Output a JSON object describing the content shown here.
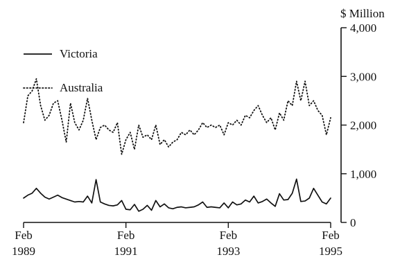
{
  "chart_data": {
    "type": "line",
    "title": "",
    "xlabel": "",
    "ylabel": "$ Million",
    "ylim": [
      0,
      4000
    ],
    "xlim": [
      "1989-02",
      "1995-02"
    ],
    "grid": false,
    "legend_position": "top-left",
    "y_axis_side": "right",
    "x_ticks": [
      {
        "date": "1989-02",
        "month": "Feb",
        "year": "1989"
      },
      {
        "date": "1991-02",
        "month": "Feb",
        "year": "1991"
      },
      {
        "date": "1993-02",
        "month": "Feb",
        "year": "1993"
      },
      {
        "date": "1995-02",
        "month": "Feb",
        "year": "1995"
      }
    ],
    "y_ticks": [
      "0",
      "1,000",
      "2,000",
      "3,000",
      "4,000"
    ],
    "y_tick_values": [
      0,
      1000,
      2000,
      3000,
      4000
    ],
    "series": [
      {
        "name": "Victoria",
        "style": "solid",
        "color": "#111111",
        "points": [
          [
            "1989-02",
            500
          ],
          [
            "1989-03",
            560
          ],
          [
            "1989-04",
            600
          ],
          [
            "1989-05",
            700
          ],
          [
            "1989-06",
            600
          ],
          [
            "1989-07",
            520
          ],
          [
            "1989-08",
            480
          ],
          [
            "1989-09",
            520
          ],
          [
            "1989-10",
            560
          ],
          [
            "1989-11",
            510
          ],
          [
            "1989-12",
            480
          ],
          [
            "1990-01",
            450
          ],
          [
            "1990-02",
            420
          ],
          [
            "1990-03",
            430
          ],
          [
            "1990-04",
            420
          ],
          [
            "1990-05",
            540
          ],
          [
            "1990-06",
            400
          ],
          [
            "1990-07",
            880
          ],
          [
            "1990-08",
            420
          ],
          [
            "1990-09",
            380
          ],
          [
            "1990-10",
            350
          ],
          [
            "1990-11",
            340
          ],
          [
            "1990-12",
            360
          ],
          [
            "1991-01",
            450
          ],
          [
            "1991-02",
            270
          ],
          [
            "1991-03",
            260
          ],
          [
            "1991-04",
            370
          ],
          [
            "1991-05",
            230
          ],
          [
            "1991-06",
            270
          ],
          [
            "1991-07",
            350
          ],
          [
            "1991-08",
            250
          ],
          [
            "1991-09",
            450
          ],
          [
            "1991-10",
            320
          ],
          [
            "1991-11",
            380
          ],
          [
            "1991-12",
            300
          ],
          [
            "1992-01",
            280
          ],
          [
            "1992-02",
            310
          ],
          [
            "1992-03",
            320
          ],
          [
            "1992-04",
            300
          ],
          [
            "1992-05",
            310
          ],
          [
            "1992-06",
            320
          ],
          [
            "1992-07",
            360
          ],
          [
            "1992-08",
            420
          ],
          [
            "1992-09",
            310
          ],
          [
            "1992-10",
            320
          ],
          [
            "1992-11",
            310
          ],
          [
            "1992-12",
            300
          ],
          [
            "1993-01",
            400
          ],
          [
            "1993-02",
            300
          ],
          [
            "1993-03",
            420
          ],
          [
            "1993-04",
            360
          ],
          [
            "1993-05",
            380
          ],
          [
            "1993-06",
            460
          ],
          [
            "1993-07",
            420
          ],
          [
            "1993-08",
            540
          ],
          [
            "1993-09",
            400
          ],
          [
            "1993-10",
            430
          ],
          [
            "1993-11",
            480
          ],
          [
            "1993-12",
            400
          ],
          [
            "1994-01",
            330
          ],
          [
            "1994-02",
            590
          ],
          [
            "1994-03",
            460
          ],
          [
            "1994-04",
            470
          ],
          [
            "1994-05",
            600
          ],
          [
            "1994-06",
            890
          ],
          [
            "1994-07",
            430
          ],
          [
            "1994-08",
            440
          ],
          [
            "1994-09",
            500
          ],
          [
            "1994-10",
            700
          ],
          [
            "1994-11",
            560
          ],
          [
            "1994-12",
            420
          ],
          [
            "1995-01",
            380
          ],
          [
            "1995-02",
            500
          ]
        ]
      },
      {
        "name": "Australia",
        "style": "dotted",
        "color": "#111111",
        "points": [
          [
            "1989-02",
            2050
          ],
          [
            "1989-03",
            2600
          ],
          [
            "1989-04",
            2700
          ],
          [
            "1989-05",
            2950
          ],
          [
            "1989-06",
            2400
          ],
          [
            "1989-07",
            2100
          ],
          [
            "1989-08",
            2200
          ],
          [
            "1989-09",
            2450
          ],
          [
            "1989-10",
            2500
          ],
          [
            "1989-11",
            2100
          ],
          [
            "1989-12",
            1650
          ],
          [
            "1990-01",
            2450
          ],
          [
            "1990-02",
            2050
          ],
          [
            "1990-03",
            1900
          ],
          [
            "1990-04",
            2100
          ],
          [
            "1990-05",
            2550
          ],
          [
            "1990-06",
            2100
          ],
          [
            "1990-07",
            1700
          ],
          [
            "1990-08",
            1950
          ],
          [
            "1990-09",
            2000
          ],
          [
            "1990-10",
            1900
          ],
          [
            "1990-11",
            1850
          ],
          [
            "1990-12",
            2050
          ],
          [
            "1991-01",
            1400
          ],
          [
            "1991-02",
            1700
          ],
          [
            "1991-03",
            1850
          ],
          [
            "1991-04",
            1500
          ],
          [
            "1991-05",
            2000
          ],
          [
            "1991-06",
            1750
          ],
          [
            "1991-07",
            1800
          ],
          [
            "1991-08",
            1700
          ],
          [
            "1991-09",
            2000
          ],
          [
            "1991-10",
            1600
          ],
          [
            "1991-11",
            1700
          ],
          [
            "1991-12",
            1550
          ],
          [
            "1992-01",
            1650
          ],
          [
            "1992-02",
            1700
          ],
          [
            "1992-03",
            1850
          ],
          [
            "1992-04",
            1800
          ],
          [
            "1992-05",
            1900
          ],
          [
            "1992-06",
            1800
          ],
          [
            "1992-07",
            1900
          ],
          [
            "1992-08",
            2050
          ],
          [
            "1992-09",
            1950
          ],
          [
            "1992-10",
            2000
          ],
          [
            "1992-11",
            1950
          ],
          [
            "1992-12",
            2000
          ],
          [
            "1993-01",
            1800
          ],
          [
            "1993-02",
            2050
          ],
          [
            "1993-03",
            2000
          ],
          [
            "1993-04",
            2100
          ],
          [
            "1993-05",
            2000
          ],
          [
            "1993-06",
            2200
          ],
          [
            "1993-07",
            2150
          ],
          [
            "1993-08",
            2300
          ],
          [
            "1993-09",
            2400
          ],
          [
            "1993-10",
            2200
          ],
          [
            "1993-11",
            2050
          ],
          [
            "1993-12",
            2150
          ],
          [
            "1994-01",
            1900
          ],
          [
            "1994-02",
            2250
          ],
          [
            "1994-03",
            2100
          ],
          [
            "1994-04",
            2500
          ],
          [
            "1994-05",
            2400
          ],
          [
            "1994-06",
            2900
          ],
          [
            "1994-07",
            2500
          ],
          [
            "1994-08",
            2900
          ],
          [
            "1994-09",
            2400
          ],
          [
            "1994-10",
            2500
          ],
          [
            "1994-11",
            2300
          ],
          [
            "1994-12",
            2200
          ],
          [
            "1995-01",
            1800
          ],
          [
            "1995-02",
            2150
          ]
        ]
      }
    ]
  }
}
